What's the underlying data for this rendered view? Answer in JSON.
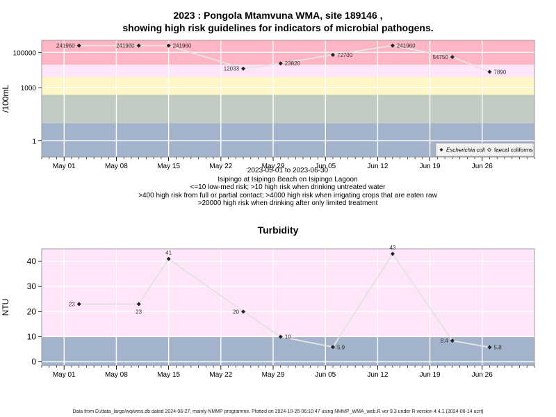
{
  "title_line1": "2023 : Pongola Mtamvuna WMA, site 189146 ,",
  "title_line2": "showing high risk guidelines for indicators of microbial pathogens.",
  "captions": [
    "2023-05-01 to 2023-06-30",
    "Isipingo at Isipingo Beach on Isipingo Lagoon",
    "<=10 low-med risk; >10 high risk when drinking untreated water",
    ">400 high risk from full or partial contact; >4000 high risk when irrigating crops that are eaten raw",
    ">20000 high risk when drinking after only limited treatment"
  ],
  "footer": "Data from D:/data_large/wq/wms.db dated 2024-08-27, mainly NMMP programme. Plotted on 2024-10-25 06:10:47 using NMMP_WMA_web.R ver 9.3 under R version 4.4.1 (2024-06-14 ucrt)",
  "colors": {
    "band_low": "#a3b3cb",
    "band_mid": "#c2ccc2",
    "band_yellow": "#fff6c6",
    "band_pink_light": "#ffe5f9",
    "band_red": "#ffb5c3",
    "line": "#e3e3e3",
    "point": "#222222"
  },
  "chart_data": [
    {
      "type": "line",
      "title": "",
      "ylabel": "/100mL",
      "y_scale": "log10",
      "ylim": [
        0.12,
        480000
      ],
      "x_ticks": [
        "May 01",
        "May 08",
        "May 15",
        "May 22",
        "May 29",
        "Jun 05",
        "Jun 12",
        "Jun 19",
        "Jun 26"
      ],
      "x_tick_dates": [
        "2023-05-01",
        "2023-05-08",
        "2023-05-15",
        "2023-05-22",
        "2023-05-29",
        "2023-06-05",
        "2023-06-12",
        "2023-06-19",
        "2023-06-26"
      ],
      "xlim": [
        "2023-04-28",
        "2023-07-03"
      ],
      "y_ticks": [
        1,
        1000,
        100000
      ],
      "y_tick_labels": [
        "1",
        "1000",
        "100000"
      ],
      "bands": [
        {
          "from": 0.12,
          "to": 10,
          "color": "#a3b3cb"
        },
        {
          "from": 10,
          "to": 400,
          "color": "#c2ccc2"
        },
        {
          "from": 400,
          "to": 4000,
          "color": "#fff6c6"
        },
        {
          "from": 4000,
          "to": 20000,
          "color": "#ffe5f9"
        },
        {
          "from": 20000,
          "to": 480000,
          "color": "#ffb5c3"
        }
      ],
      "legend": {
        "position": "bottom-right",
        "entries": [
          "Escherichia coli",
          "faecal coliforms"
        ]
      },
      "series": [
        {
          "name": "Escherichia coli",
          "x": [
            "2023-05-03",
            "2023-05-11",
            "2023-05-15",
            "2023-05-25",
            "2023-05-30",
            "2023-06-06",
            "2023-06-14",
            "2023-06-22",
            "2023-06-27"
          ],
          "values": [
            241960,
            241960,
            241960,
            12033,
            23820,
            72700,
            241960,
            54750,
            7890
          ],
          "labels": [
            "241960",
            "241960",
            "241960",
            "12033",
            "23820",
            "72700",
            "241960",
            "54750",
            "7890"
          ],
          "label_side": [
            "left",
            "left",
            "right",
            "left",
            "right",
            "right",
            "right",
            "left",
            "right"
          ]
        }
      ]
    },
    {
      "type": "line",
      "title": "Turbidity",
      "ylabel": "NTU",
      "ylim": [
        -1.5,
        45
      ],
      "x_ticks": [
        "May 01",
        "May 08",
        "May 15",
        "May 22",
        "May 29",
        "Jun 05",
        "Jun 12",
        "Jun 19",
        "Jun 26"
      ],
      "x_tick_dates": [
        "2023-05-01",
        "2023-05-08",
        "2023-05-15",
        "2023-05-22",
        "2023-05-29",
        "2023-06-05",
        "2023-06-12",
        "2023-06-19",
        "2023-06-26"
      ],
      "xlim": [
        "2023-04-28",
        "2023-07-03"
      ],
      "y_ticks": [
        0,
        10,
        20,
        30,
        40
      ],
      "y_tick_labels": [
        "0",
        "10",
        "20",
        "30",
        "40"
      ],
      "bands": [
        {
          "from": -1.5,
          "to": 10,
          "color": "#a3b3cb"
        },
        {
          "from": 10,
          "to": 45,
          "color": "#ffe5f9"
        }
      ],
      "series": [
        {
          "x": [
            "2023-05-03",
            "2023-05-11",
            "2023-05-15",
            "2023-05-25",
            "2023-05-30",
            "2023-06-06",
            "2023-06-14",
            "2023-06-22",
            "2023-06-27"
          ],
          "values": [
            23,
            23,
            41,
            20,
            10,
            5.9,
            43,
            8.4,
            5.8
          ],
          "labels": [
            "23",
            "23",
            "41",
            "20",
            "10",
            "5.9",
            "43",
            "8.4",
            "5.8"
          ],
          "label_side": [
            "left",
            "below",
            "above",
            "left",
            "right",
            "right",
            "above",
            "left",
            "right"
          ]
        }
      ]
    }
  ]
}
